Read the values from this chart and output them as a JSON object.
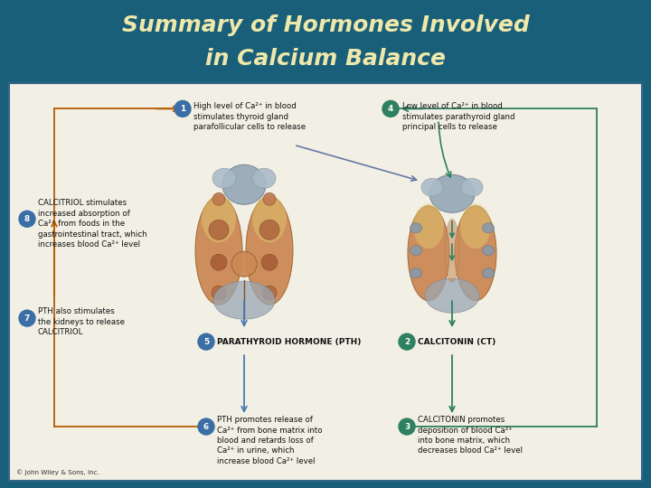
{
  "title_line1": "Summary of Hormones Involved",
  "title_line2": "in Calcium Balance",
  "title_color": "#EEE8AA",
  "title_fontsize": 18,
  "title_fontstyle": "italic",
  "title_fontweight": "bold",
  "bg_color_top": "#1A5F7A",
  "content_bg": "#F2EFE4",
  "border_color": "#336688",
  "copyright": "© John Wiley & Sons, Inc.",
  "label1_text": "High level of Ca²⁺ in blood\nstimulates thyroid gland\nparafollicular cells to release",
  "label4_text": "Low level of Ca²⁺ in blood\nstimulates parathyroid gland\nprincipal cells to release",
  "label8_text": "CALCITRIOL stimulates\nincreased absorption of\nCa²⁺ from foods in the\ngastrointestinal tract, which\nincreases blood Ca²⁺ level",
  "label7_text": "PTH also stimulates\nthe kidneys to release\nCALCITRIOL",
  "label5_text": "PARATHYROID HORMONE (PTH)",
  "label2_text": "CALCITONIN (CT)",
  "label6_text": "PTH promotes release of\nCa²⁺ from bone matrix into\nblood and retards loss of\nCa²⁺ in urine, which\nincrease blood Ca²⁺ level",
  "label3_text": "CALCITONIN promotes\ndeposition of blood Ca²⁺\ninto bone matrix, which\ndecreases blood Ca²⁺ level",
  "circle_color_blue": "#3A6EA5",
  "circle_color_green": "#2E8060",
  "arrow_color_blue": "#4A7AB5",
  "arrow_color_green": "#2E8060",
  "arrow_color_orange": "#B85C00",
  "text_color_dark": "#111111"
}
